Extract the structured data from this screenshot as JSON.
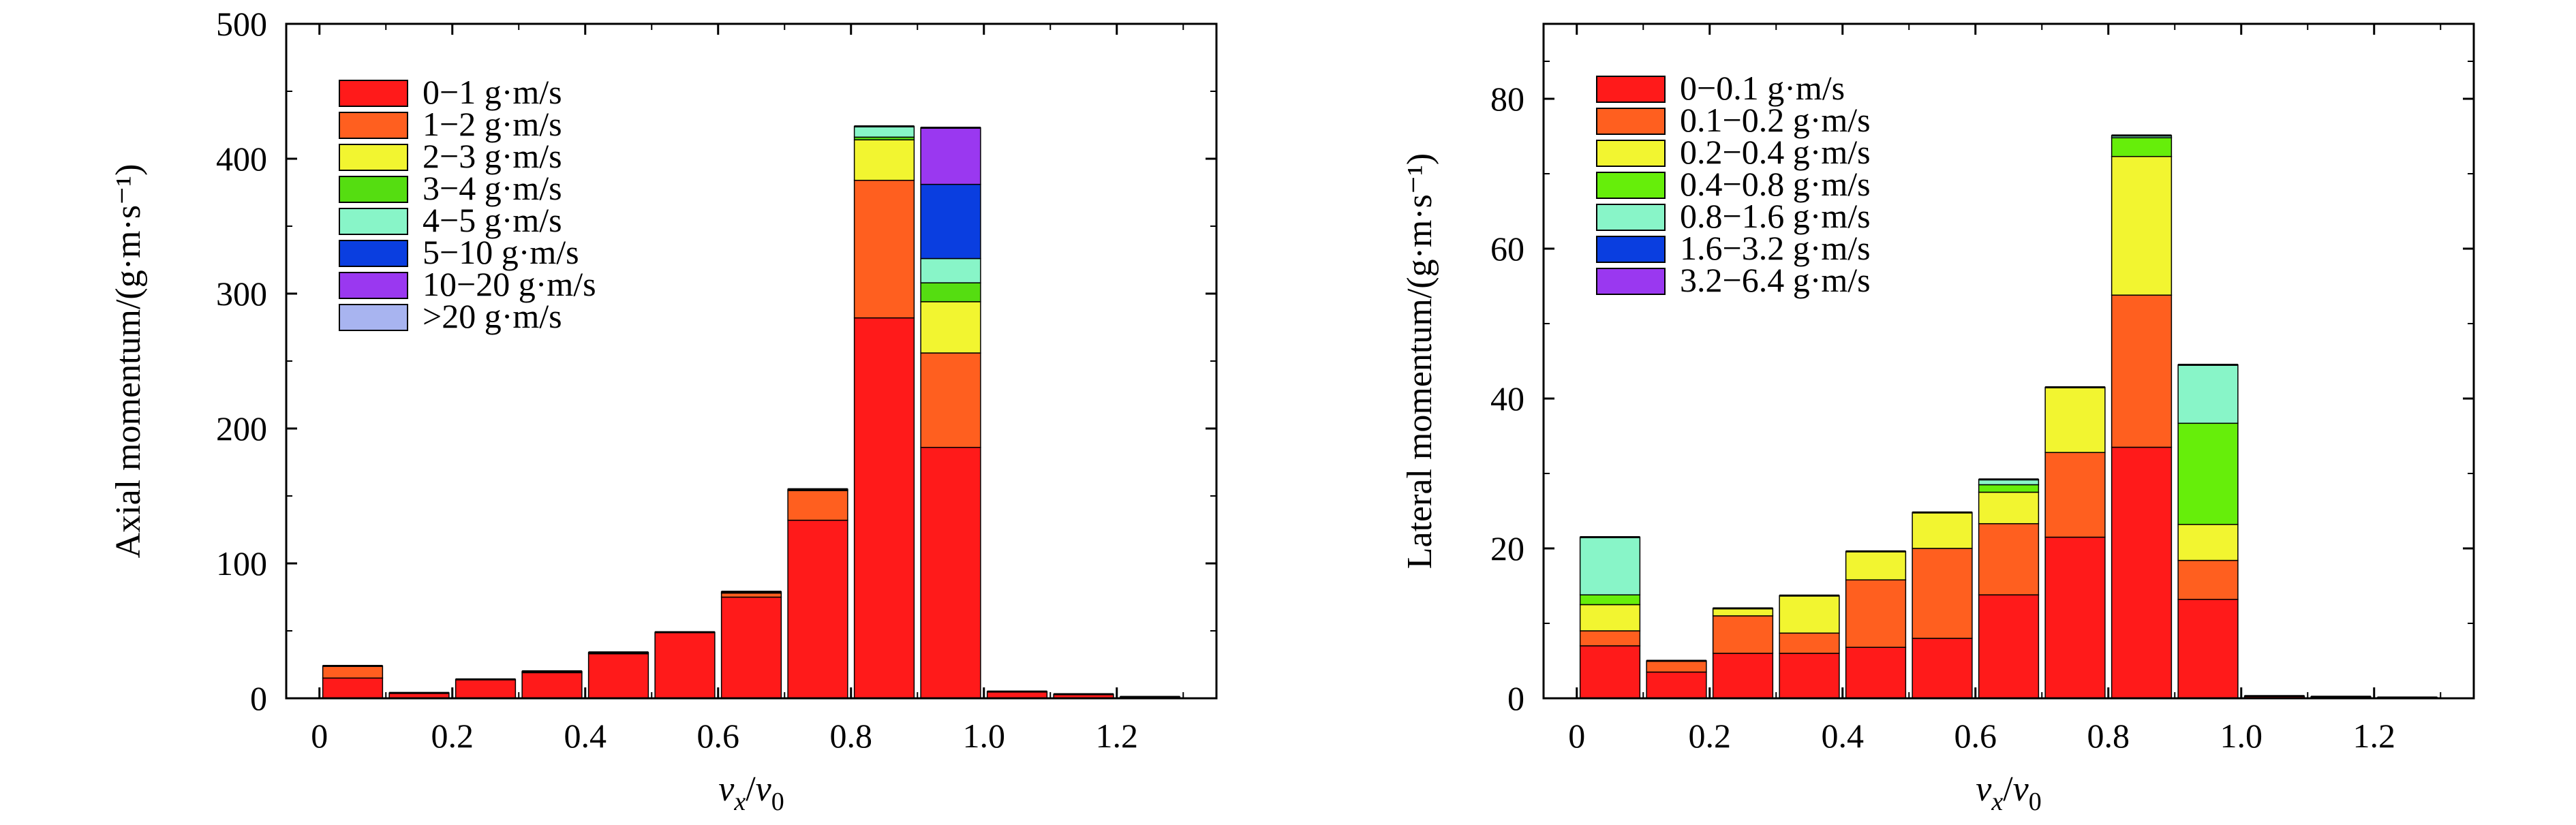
{
  "chart_data": [
    {
      "type": "bar",
      "stacked": true,
      "panel": "left",
      "ylabel": "Axial momentum/(g·m·s⁻¹)",
      "xlabel_main": "v",
      "xlabel_sub1": "x",
      "xlabel_slash": "/",
      "xlabel_main2": "v",
      "xlabel_sub2": "0",
      "ylim": [
        0,
        500
      ],
      "xlim": [
        -0.05,
        1.35
      ],
      "yticks": [
        0,
        100,
        200,
        300,
        400,
        500
      ],
      "xticks": [
        0,
        0.2,
        0.4,
        0.6,
        0.8,
        1.0,
        1.2
      ],
      "ytick_labels": [
        "0",
        "100",
        "200",
        "300",
        "400",
        "500"
      ],
      "xtick_labels": [
        "0",
        "0.2",
        "0.4",
        "0.6",
        "0.8",
        "1.0",
        "1.2"
      ],
      "bar_width": 0.09,
      "x": [
        0.05,
        0.15,
        0.25,
        0.35,
        0.45,
        0.55,
        0.65,
        0.75,
        0.85,
        0.95,
        1.05,
        1.15,
        1.25
      ],
      "legend_position": "top-left",
      "series": [
        {
          "name": "0−1 g·m/s",
          "color": "#ff1a1a",
          "values": [
            15,
            4,
            14,
            19,
            33,
            49,
            75,
            132,
            282,
            186,
            5,
            3,
            1
          ]
        },
        {
          "name": "1−2 g·m/s",
          "color": "#ff5f1f",
          "values": [
            9,
            0,
            0,
            1,
            1,
            0,
            3,
            22,
            102,
            70,
            0,
            0,
            0
          ]
        },
        {
          "name": "2−3 g·m/s",
          "color": "#f2f530",
          "values": [
            0,
            0,
            0,
            0,
            0,
            0,
            1,
            1,
            30,
            38,
            0,
            0,
            0
          ]
        },
        {
          "name": "3−4 g·m/s",
          "color": "#55dd11",
          "values": [
            0,
            0,
            0,
            0,
            0,
            0,
            0,
            0,
            2,
            14,
            0,
            0,
            0
          ]
        },
        {
          "name": "4−5 g·m/s",
          "color": "#88f5c8",
          "values": [
            0,
            0,
            0,
            0,
            0,
            0,
            0,
            0,
            8,
            18,
            0,
            0,
            0
          ]
        },
        {
          "name": "5−10 g·m/s",
          "color": "#0a3ee0",
          "values": [
            0,
            0,
            0,
            0,
            0,
            0,
            0,
            0,
            0,
            55,
            0,
            0,
            0
          ]
        },
        {
          "name": "10−20 g·m/s",
          "color": "#9a38f0",
          "values": [
            0,
            0,
            0,
            0,
            0,
            0,
            0,
            0,
            0,
            42,
            0,
            0,
            0
          ]
        },
        {
          "name": ">20 g·m/s",
          "color": "#a8b4f0",
          "values": [
            0,
            0,
            0,
            0,
            0,
            0,
            0,
            0,
            0,
            0,
            0,
            0,
            0
          ]
        }
      ]
    },
    {
      "type": "bar",
      "stacked": true,
      "panel": "right",
      "ylabel": "Lateral momentum/(g·m·s⁻¹)",
      "xlabel_main": "v",
      "xlabel_sub1": "x",
      "xlabel_slash": "/",
      "xlabel_main2": "v",
      "xlabel_sub2": "0",
      "ylim": [
        0,
        90
      ],
      "xlim": [
        -0.05,
        1.35
      ],
      "yticks": [
        0,
        20,
        40,
        60,
        80
      ],
      "xticks": [
        0,
        0.2,
        0.4,
        0.6,
        0.8,
        1.0,
        1.2
      ],
      "ytick_labels": [
        "0",
        "20",
        "40",
        "60",
        "80"
      ],
      "xtick_labels": [
        "0",
        "0.2",
        "0.4",
        "0.6",
        "0.8",
        "1.0",
        "1.2"
      ],
      "bar_width": 0.09,
      "x": [
        0.05,
        0.15,
        0.25,
        0.35,
        0.45,
        0.55,
        0.65,
        0.75,
        0.85,
        0.95,
        1.05,
        1.15,
        1.25
      ],
      "legend_position": "top-left",
      "series": [
        {
          "name": "0−0.1 g·m/s",
          "color": "#ff1a1a",
          "values": [
            7,
            3.5,
            6,
            6,
            6.8,
            8,
            13.8,
            21.5,
            33.5,
            13.2,
            0.3,
            0.2,
            0.1
          ]
        },
        {
          "name": "0.1−0.2 g·m/s",
          "color": "#ff5f1f",
          "values": [
            2,
            1.5,
            5,
            2.7,
            9,
            12,
            9.5,
            11.3,
            20.3,
            5.2,
            0,
            0,
            0
          ]
        },
        {
          "name": "0.2−0.4 g·m/s",
          "color": "#f2f530",
          "values": [
            3.5,
            0,
            1,
            5,
            3.8,
            4.8,
            4.2,
            8.7,
            18.5,
            4.8,
            0,
            0,
            0
          ]
        },
        {
          "name": "0.4−0.8 g·m/s",
          "color": "#66ee0a",
          "values": [
            1.3,
            0,
            0,
            0,
            0,
            0,
            1,
            0,
            2.5,
            13.5,
            0,
            0,
            0
          ]
        },
        {
          "name": "0.8−1.6 g·m/s",
          "color": "#88f5c8",
          "values": [
            7.7,
            0,
            0,
            0,
            0,
            0,
            0.7,
            0,
            0.3,
            7.8,
            0,
            0,
            0
          ]
        },
        {
          "name": "1.6−3.2 g·m/s",
          "color": "#0a3ee0",
          "values": [
            0,
            0,
            0,
            0,
            0,
            0,
            0,
            0,
            0,
            0,
            0,
            0,
            0
          ]
        },
        {
          "name": "3.2−6.4 g·m/s",
          "color": "#9a38f0",
          "values": [
            0,
            0,
            0,
            0,
            0,
            0,
            0,
            0,
            0,
            0,
            0,
            0,
            0
          ]
        }
      ]
    }
  ]
}
